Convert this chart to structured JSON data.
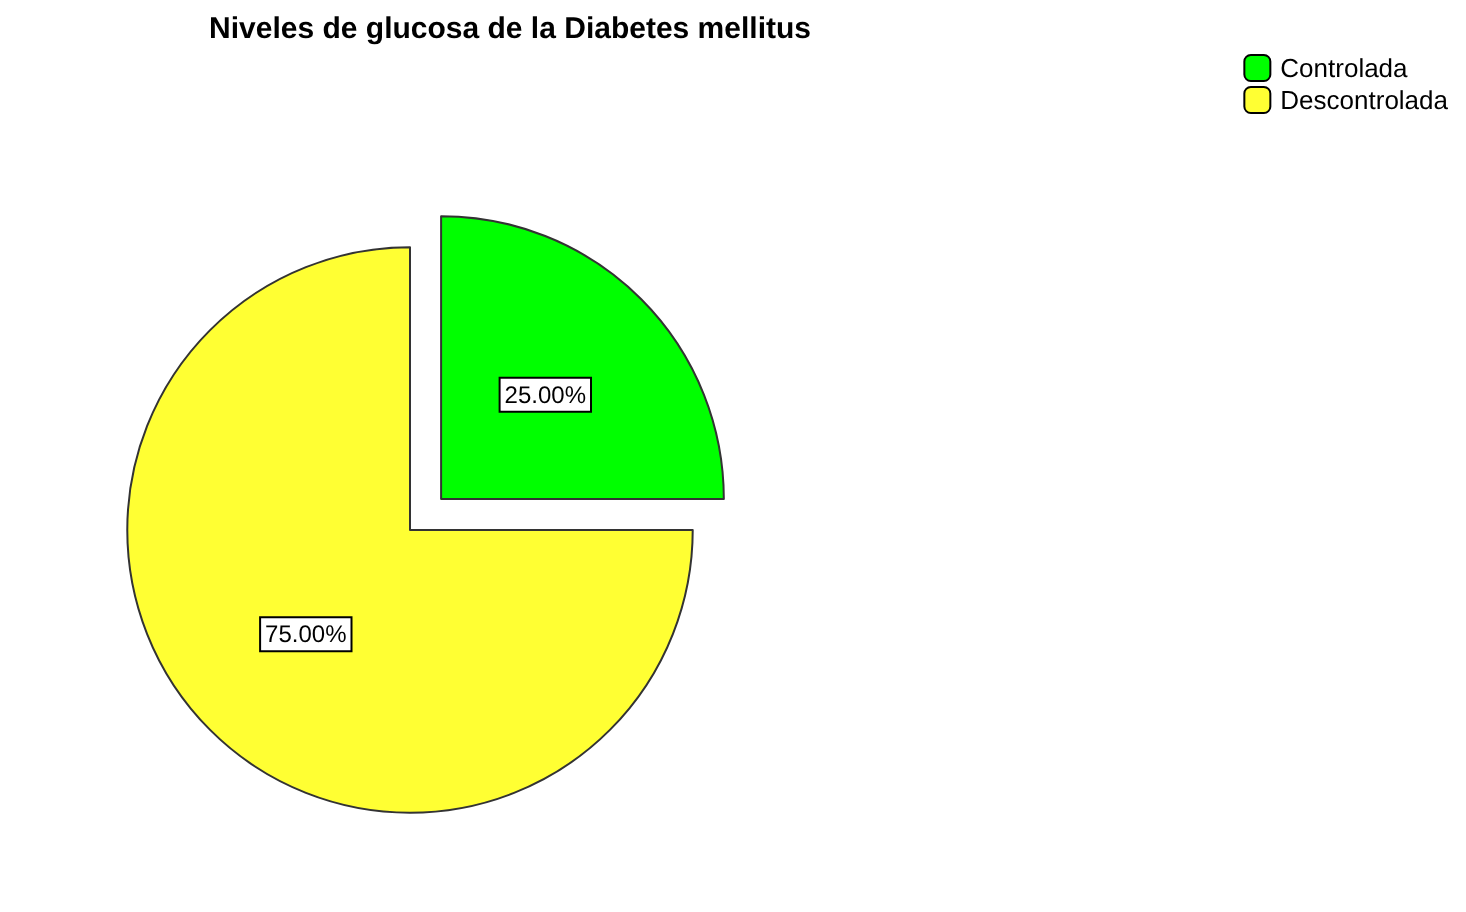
{
  "chart_data": {
    "type": "pie",
    "title": "Niveles de glucosa de la Diabetes mellitus",
    "categories": [
      "Controlada",
      "Descontrolada"
    ],
    "values": [
      25,
      75
    ],
    "colors": [
      "#00ff00",
      "#ffff33"
    ],
    "value_labels": [
      "25.00%",
      "75.00%"
    ],
    "legend": "top right"
  }
}
